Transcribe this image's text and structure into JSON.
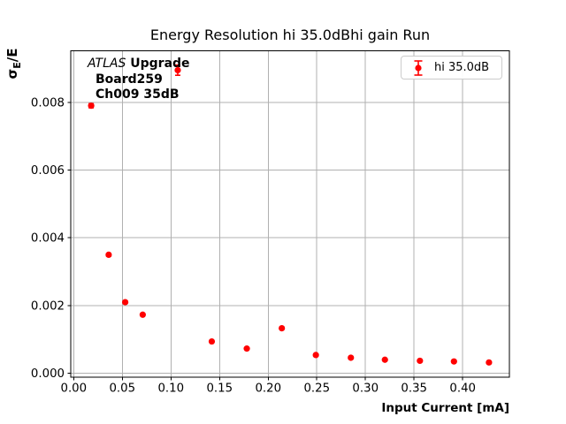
{
  "chart_data": {
    "type": "scatter",
    "title": "Energy Resolution hi 35.0dBhi gain Run",
    "xlabel": "Input Current [mA]",
    "ylabel": "σE/E",
    "ylabel_parts": {
      "sigma": "σ",
      "sub": "E",
      "rest": "/E"
    },
    "xlim": [
      -0.003,
      0.448
    ],
    "ylim": [
      -0.00012,
      0.00952
    ],
    "grid": true,
    "legend_position": "upper right",
    "xticks": [
      0.0,
      0.05,
      0.1,
      0.15,
      0.2,
      0.25,
      0.3,
      0.35,
      0.4
    ],
    "xtick_labels": [
      "0.00",
      "0.05",
      "0.10",
      "0.15",
      "0.20",
      "0.25",
      "0.30",
      "0.35",
      "0.40"
    ],
    "yticks": [
      0.0,
      0.002,
      0.004,
      0.006,
      0.008
    ],
    "ytick_labels": [
      "0.000",
      "0.002",
      "0.004",
      "0.006",
      "0.008"
    ],
    "series": [
      {
        "name": "hi 35.0dB",
        "color": "#ff0000",
        "marker": "circle-with-errorbar",
        "x": [
          0.018,
          0.036,
          0.053,
          0.071,
          0.107,
          0.142,
          0.178,
          0.214,
          0.249,
          0.285,
          0.32,
          0.356,
          0.391,
          0.427
        ],
        "y": [
          0.0079,
          0.0035,
          0.0021,
          0.00173,
          0.00895,
          0.00094,
          0.00073,
          0.00133,
          0.00054,
          0.00046,
          0.0004,
          0.00037,
          0.00035,
          0.00032
        ],
        "yerr": [
          6e-05,
          4e-05,
          3e-05,
          3e-05,
          0.00015,
          2e-05,
          2e-05,
          3e-05,
          2e-05,
          2e-05,
          2e-05,
          2e-05,
          2e-05,
          2e-05
        ]
      }
    ]
  },
  "annotation": {
    "line1_italic": "ATLAS",
    "line1_bold": "Upgrade",
    "line2": "Board259",
    "line3": "Ch009 35dB"
  },
  "colors": {
    "marker": "#ff0000",
    "grid": "#b0b0b0",
    "spine": "#000000",
    "legend_border": "#cccccc",
    "text": "#000000"
  }
}
